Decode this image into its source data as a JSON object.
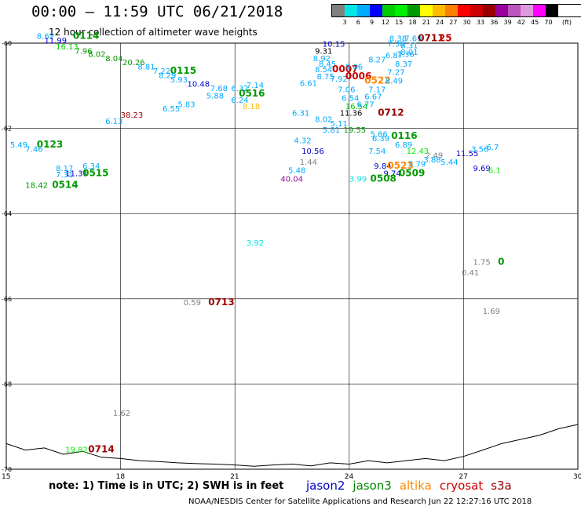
{
  "header": {
    "title": "00:00 – 11:59 UTC 06/21/2018",
    "subtitle": "12 hour collection of altimeter wave heights"
  },
  "legend": {
    "colors": [
      "#808080",
      "#00e5e5",
      "#00aaff",
      "#0000ff",
      "#00cc00",
      "#00ee00",
      "#009900",
      "#ffff00",
      "#ffbb00",
      "#ff7f00",
      "#ff0000",
      "#cc0000",
      "#990000",
      "#990099",
      "#bb55bb",
      "#dd99dd",
      "#ff00ff",
      "#000000"
    ],
    "labels": [
      "3",
      "6",
      "9",
      "12",
      "15",
      "18",
      "21",
      "24",
      "27",
      "30",
      "33",
      "36",
      "39",
      "42",
      "45",
      "70"
    ],
    "unit": "(ft)"
  },
  "axes": {
    "y_labels": [
      "-60",
      "-62",
      "-64",
      "-66",
      "-68",
      "-70"
    ],
    "x_labels": [
      "15",
      "18",
      "21",
      "24",
      "27",
      "30"
    ]
  },
  "footer": {
    "note": "note:  1) Time is in UTC;  2) SWH is in feet",
    "satellites": [
      {
        "name": "jason2",
        "color": "#0000cc"
      },
      {
        "name": "jason3",
        "color": "#008800"
      },
      {
        "name": "altika",
        "color": "#ff8800"
      },
      {
        "name": "cryosat",
        "color": "#cc0000"
      },
      {
        "name": "s3a",
        "color": "#990000"
      }
    ],
    "credit": "NOAA/NESDIS Center for Satellite Applications and Research    Jun 22 12:27:16 UTC 2018"
  },
  "map_labels": [
    {
      "t": "8.62",
      "lon": 15.8,
      "lat": -59.9,
      "c": "#00aaff"
    },
    {
      "t": "0114",
      "lon": 16.75,
      "lat": -59.9,
      "c": "#009900",
      "b": true
    },
    {
      "t": "11.99",
      "lon": 16.0,
      "lat": -60.0,
      "c": "#0000cc"
    },
    {
      "t": "16.13",
      "lon": 16.3,
      "lat": -60.15,
      "c": "#00cc00"
    },
    {
      "t": "7.96",
      "lon": 16.8,
      "lat": -60.25,
      "c": "#009900"
    },
    {
      "t": "8.02",
      "lon": 17.15,
      "lat": -60.32,
      "c": "#009900"
    },
    {
      "t": "8.04",
      "lon": 17.6,
      "lat": -60.42,
      "c": "#009900"
    },
    {
      "t": "20.26",
      "lon": 18.05,
      "lat": -60.52,
      "c": "#009900"
    },
    {
      "t": "8.81",
      "lon": 18.45,
      "lat": -60.62,
      "c": "#00aaff"
    },
    {
      "t": "7.22",
      "lon": 18.85,
      "lat": -60.72,
      "c": "#00aaff"
    },
    {
      "t": "0115",
      "lon": 19.3,
      "lat": -60.72,
      "c": "#009900",
      "b": true
    },
    {
      "t": "8.29",
      "lon": 19.0,
      "lat": -60.82,
      "c": "#00aaff"
    },
    {
      "t": "5.93",
      "lon": 19.3,
      "lat": -60.92,
      "c": "#00aaff"
    },
    {
      "t": "10.48",
      "lon": 19.75,
      "lat": -61.02,
      "c": "#0000cc"
    },
    {
      "t": "7.68",
      "lon": 20.35,
      "lat": -61.12,
      "c": "#00aaff"
    },
    {
      "t": "6.32",
      "lon": 20.9,
      "lat": -61.12,
      "c": "#00aaff"
    },
    {
      "t": "7.14",
      "lon": 21.3,
      "lat": -61.05,
      "c": "#00aaff"
    },
    {
      "t": "0516",
      "lon": 21.1,
      "lat": -61.25,
      "c": "#009900",
      "b": true
    },
    {
      "t": "5.88",
      "lon": 20.25,
      "lat": -61.3,
      "c": "#00aaff"
    },
    {
      "t": "5.83",
      "lon": 19.5,
      "lat": -61.5,
      "c": "#00aaff"
    },
    {
      "t": "6.55",
      "lon": 19.1,
      "lat": -61.6,
      "c": "#00aaff"
    },
    {
      "t": "6.24",
      "lon": 20.9,
      "lat": -61.4,
      "c": "#00aaff"
    },
    {
      "t": "8.18",
      "lon": 21.2,
      "lat": -61.55,
      "c": "#ffbb00"
    },
    {
      "t": "38.23",
      "lon": 18.0,
      "lat": -61.75,
      "c": "#990000"
    },
    {
      "t": "6.13",
      "lon": 17.6,
      "lat": -61.9,
      "c": "#00aaff"
    },
    {
      "t": "5.49",
      "lon": 15.1,
      "lat": -62.45,
      "c": "#00aaff"
    },
    {
      "t": "0123",
      "lon": 15.8,
      "lat": -62.45,
      "c": "#009900",
      "b": true
    },
    {
      "t": "7.46",
      "lon": 15.5,
      "lat": -62.55,
      "c": "#00aaff"
    },
    {
      "t": "8.17",
      "lon": 16.3,
      "lat": -63.0,
      "c": "#00aaff"
    },
    {
      "t": "6.34",
      "lon": 17.0,
      "lat": -62.95,
      "c": "#00aaff"
    },
    {
      "t": "7.31",
      "lon": 16.3,
      "lat": -63.15,
      "c": "#00aaff"
    },
    {
      "t": "11.31",
      "lon": 16.55,
      "lat": -63.12,
      "c": "#0000cc"
    },
    {
      "t": "0515",
      "lon": 17.0,
      "lat": -63.12,
      "c": "#009900",
      "b": true
    },
    {
      "t": "18.42",
      "lon": 15.5,
      "lat": -63.4,
      "c": "#009900"
    },
    {
      "t": "0514",
      "lon": 16.2,
      "lat": -63.4,
      "c": "#009900",
      "b": true
    },
    {
      "t": "10.15",
      "lon": 23.3,
      "lat": -60.08,
      "c": "#0000cc"
    },
    {
      "t": "9.31",
      "lon": 23.1,
      "lat": -60.25,
      "c": "#000000"
    },
    {
      "t": "8.92",
      "lon": 23.05,
      "lat": -60.42,
      "c": "#00aaff"
    },
    {
      "t": "8.45",
      "lon": 23.2,
      "lat": -60.55,
      "c": "#00aaff"
    },
    {
      "t": "8.54",
      "lon": 23.1,
      "lat": -60.68,
      "c": "#00aaff"
    },
    {
      "t": "0007",
      "lon": 23.55,
      "lat": -60.68,
      "c": "#cc0000",
      "b": true
    },
    {
      "t": "8.75",
      "lon": 23.15,
      "lat": -60.85,
      "c": "#00aaff"
    },
    {
      "t": "7.92",
      "lon": 23.5,
      "lat": -60.9,
      "c": "#00aaff"
    },
    {
      "t": "0006",
      "lon": 23.9,
      "lat": -60.85,
      "c": "#cc0000",
      "b": true
    },
    {
      "t": "0522",
      "lon": 24.4,
      "lat": -60.95,
      "c": "#ff8800",
      "b": true
    },
    {
      "t": "9.06",
      "lon": 23.9,
      "lat": -60.62,
      "c": "#00aaff"
    },
    {
      "t": "8.27",
      "lon": 24.5,
      "lat": -60.45,
      "c": "#00aaff"
    },
    {
      "t": "6.87",
      "lon": 24.95,
      "lat": -60.35,
      "c": "#00aaff"
    },
    {
      "t": "7.36",
      "lon": 25.25,
      "lat": -60.32,
      "c": "#00aaff"
    },
    {
      "t": "8.37",
      "lon": 25.2,
      "lat": -60.55,
      "c": "#00aaff"
    },
    {
      "t": "7.27",
      "lon": 25.0,
      "lat": -60.75,
      "c": "#00aaff"
    },
    {
      "t": "8.49",
      "lon": 24.95,
      "lat": -60.95,
      "c": "#00aaff"
    },
    {
      "t": "6.61",
      "lon": 22.7,
      "lat": -61.0,
      "c": "#00aaff"
    },
    {
      "t": "7.06",
      "lon": 23.7,
      "lat": -61.15,
      "c": "#00aaff"
    },
    {
      "t": "7.17",
      "lon": 24.5,
      "lat": -61.15,
      "c": "#00aaff"
    },
    {
      "t": "6.54",
      "lon": 23.8,
      "lat": -61.35,
      "c": "#00aaff"
    },
    {
      "t": "6.67",
      "lon": 24.4,
      "lat": -61.32,
      "c": "#00aaff"
    },
    {
      "t": "16.54",
      "lon": 23.9,
      "lat": -61.55,
      "c": "#00cc00"
    },
    {
      "t": "6.77",
      "lon": 24.2,
      "lat": -61.5,
      "c": "#00aaff"
    },
    {
      "t": "6.31",
      "lon": 22.5,
      "lat": -61.7,
      "c": "#00aaff"
    },
    {
      "t": "11.36",
      "lon": 23.75,
      "lat": -61.7,
      "c": "#000000"
    },
    {
      "t": "0712",
      "lon": 24.75,
      "lat": -61.7,
      "c": "#990000",
      "b": true
    },
    {
      "t": "8.02",
      "lon": 23.1,
      "lat": -61.85,
      "c": "#00aaff"
    },
    {
      "t": "5.11",
      "lon": 23.5,
      "lat": -61.95,
      "c": "#00aaff"
    },
    {
      "t": "5.81",
      "lon": 23.3,
      "lat": -62.1,
      "c": "#00aaff"
    },
    {
      "t": "19.55",
      "lon": 23.85,
      "lat": -62.1,
      "c": "#009900"
    },
    {
      "t": "5.86",
      "lon": 24.55,
      "lat": -62.2,
      "c": "#00aaff"
    },
    {
      "t": "6.39",
      "lon": 24.6,
      "lat": -62.3,
      "c": "#00aaff"
    },
    {
      "t": "0116",
      "lon": 25.1,
      "lat": -62.25,
      "c": "#009900",
      "b": true
    },
    {
      "t": "4.32",
      "lon": 22.55,
      "lat": -62.35,
      "c": "#00aaff"
    },
    {
      "t": "6.89",
      "lon": 25.2,
      "lat": -62.45,
      "c": "#00aaff"
    },
    {
      "t": "10.56",
      "lon": 22.75,
      "lat": -62.6,
      "c": "#0000cc"
    },
    {
      "t": "7.54",
      "lon": 24.5,
      "lat": -62.6,
      "c": "#00aaff"
    },
    {
      "t": "12.43",
      "lon": 25.5,
      "lat": -62.6,
      "c": "#00ee00"
    },
    {
      "t": "2.49",
      "lon": 26.0,
      "lat": -62.7,
      "c": "#808080"
    },
    {
      "t": "1.44",
      "lon": 22.7,
      "lat": -62.85,
      "c": "#808080"
    },
    {
      "t": "9.84",
      "lon": 24.65,
      "lat": -62.95,
      "c": "#0000cc"
    },
    {
      "t": "0523",
      "lon": 25.0,
      "lat": -62.95,
      "c": "#ff8800",
      "b": true
    },
    {
      "t": "5.79",
      "lon": 25.55,
      "lat": -62.9,
      "c": "#00aaff"
    },
    {
      "t": "3.88",
      "lon": 25.95,
      "lat": -62.8,
      "c": "#00aaff"
    },
    {
      "t": "5.44",
      "lon": 26.4,
      "lat": -62.85,
      "c": "#00aaff"
    },
    {
      "t": "11.55",
      "lon": 26.8,
      "lat": -62.65,
      "c": "#0000cc"
    },
    {
      "t": "3.56",
      "lon": 27.2,
      "lat": -62.55,
      "c": "#00aaff"
    },
    {
      "t": "6.7",
      "lon": 27.6,
      "lat": -62.5,
      "c": "#00aaff"
    },
    {
      "t": "5.48",
      "lon": 22.4,
      "lat": -63.05,
      "c": "#00aaff"
    },
    {
      "t": "9.74",
      "lon": 24.9,
      "lat": -63.12,
      "c": "#0000cc"
    },
    {
      "t": "0509",
      "lon": 25.3,
      "lat": -63.12,
      "c": "#009900",
      "b": true
    },
    {
      "t": "9.69",
      "lon": 27.25,
      "lat": -63.0,
      "c": "#0000cc"
    },
    {
      "t": "6.1",
      "lon": 27.65,
      "lat": -63.05,
      "c": "#00ee00"
    },
    {
      "t": "40.04",
      "lon": 22.2,
      "lat": -63.25,
      "c": "#990099"
    },
    {
      "t": "3.99",
      "lon": 24.0,
      "lat": -63.25,
      "c": "#00e5e5"
    },
    {
      "t": "0508",
      "lon": 24.55,
      "lat": -63.25,
      "c": "#009900",
      "b": true
    },
    {
      "t": "8.38",
      "lon": 25.05,
      "lat": -59.95,
      "c": "#00aaff"
    },
    {
      "t": "7.69",
      "lon": 25.45,
      "lat": -59.95,
      "c": "#00aaff"
    },
    {
      "t": "0711",
      "lon": 25.8,
      "lat": -59.95,
      "c": "#990000",
      "b": true
    },
    {
      "t": "25",
      "lon": 26.35,
      "lat": -59.95,
      "c": "#cc0000",
      "b": true
    },
    {
      "t": "7.38",
      "lon": 25.0,
      "lat": -60.08,
      "c": "#00aaff"
    },
    {
      "t": "8.31",
      "lon": 25.35,
      "lat": -60.12,
      "c": "#00aaff"
    },
    {
      "t": "8.01",
      "lon": 25.35,
      "lat": -60.28,
      "c": "#00aaff"
    },
    {
      "t": "3.92",
      "lon": 21.3,
      "lat": -64.75,
      "c": "#00e5e5"
    },
    {
      "t": "1.75",
      "lon": 27.25,
      "lat": -65.2,
      "c": "#808080"
    },
    {
      "t": "0",
      "lon": 27.9,
      "lat": -65.2,
      "c": "#009900",
      "b": true
    },
    {
      "t": "0.41",
      "lon": 26.95,
      "lat": -65.45,
      "c": "#808080"
    },
    {
      "t": "0.59",
      "lon": 19.65,
      "lat": -66.15,
      "c": "#808080"
    },
    {
      "t": "0713",
      "lon": 20.3,
      "lat": -66.15,
      "c": "#990000",
      "b": true
    },
    {
      "t": "1.69",
      "lon": 27.5,
      "lat": -66.35,
      "c": "#808080"
    },
    {
      "t": "1.62",
      "lon": 17.8,
      "lat": -68.75,
      "c": "#808080"
    },
    {
      "t": "19.82",
      "lon": 16.55,
      "lat": -69.6,
      "c": "#00ee00"
    },
    {
      "t": "0714",
      "lon": 17.15,
      "lat": -69.6,
      "c": "#990000",
      "b": true
    }
  ]
}
